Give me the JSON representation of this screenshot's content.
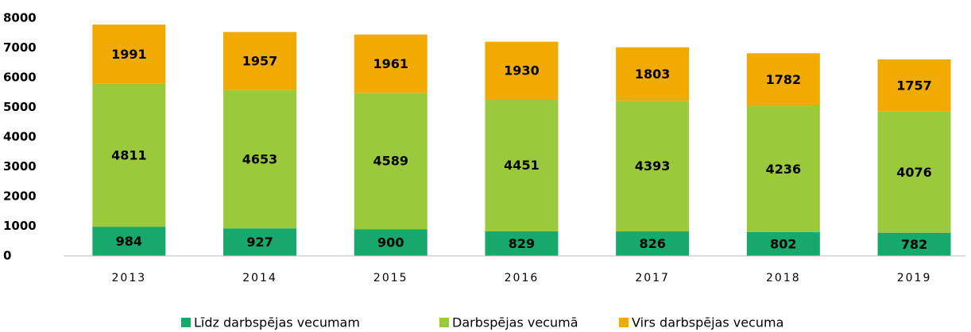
{
  "chart_data": {
    "type": "stacked_bar",
    "categories": [
      "2013",
      "2014",
      "2015",
      "2016",
      "2017",
      "2018",
      "2019"
    ],
    "series": [
      {
        "name": "Līdz darbspējas vecumam",
        "color": "#17a86b",
        "values": [
          984,
          927,
          900,
          829,
          826,
          802,
          782
        ]
      },
      {
        "name": "Darbspējas vecumā",
        "color": "#9bc93c",
        "values": [
          4811,
          4653,
          4589,
          4451,
          4393,
          4236,
          4076
        ]
      },
      {
        "name": "Virs darbspējas vecuma",
        "color": "#f0aa00",
        "values": [
          1991,
          1957,
          1961,
          1930,
          1803,
          1782,
          1757
        ]
      }
    ],
    "ylim": [
      0,
      8000
    ],
    "yticks": [
      0,
      1000,
      2000,
      3000,
      4000,
      5000,
      6000,
      7000,
      8000
    ],
    "grid": false,
    "legend": "bottom"
  }
}
